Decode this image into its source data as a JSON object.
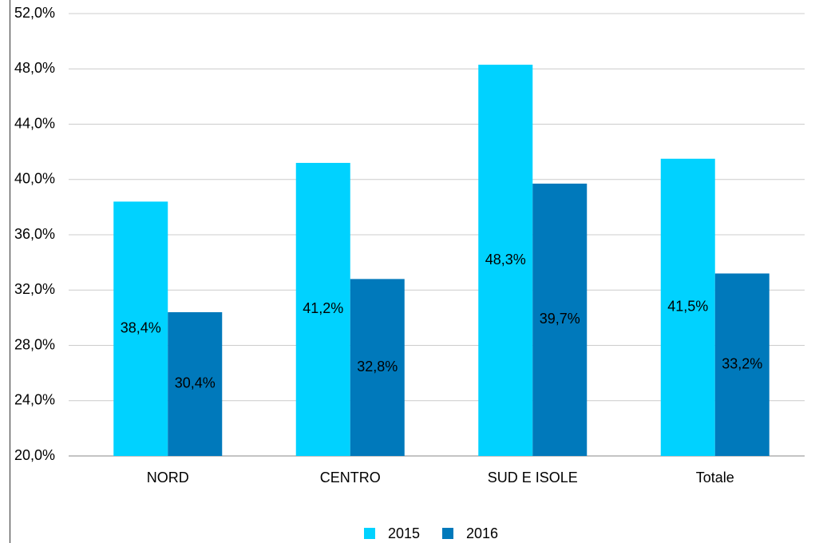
{
  "chart_data": {
    "type": "bar",
    "categories": [
      "NORD",
      "CENTRO",
      "SUD E ISOLE",
      "Totale"
    ],
    "series": [
      {
        "name": "2015",
        "color": "#00d2ff",
        "values": [
          38.4,
          41.2,
          48.3,
          41.5
        ],
        "value_labels": [
          "38,4%",
          "41,2%",
          "48,3%",
          "41,5%"
        ]
      },
      {
        "name": "2016",
        "color": "#0079bb",
        "values": [
          30.4,
          32.8,
          39.7,
          33.2
        ],
        "value_labels": [
          "30,4%",
          "32,8%",
          "39,7%",
          "33,2%"
        ]
      }
    ],
    "ylim": [
      20,
      52
    ],
    "yticks": [
      {
        "value": 20,
        "label": "20,0%"
      },
      {
        "value": 24,
        "label": "24,0%"
      },
      {
        "value": 28,
        "label": "28,0%"
      },
      {
        "value": 32,
        "label": "32,0%"
      },
      {
        "value": 36,
        "label": "36,0%"
      },
      {
        "value": 40,
        "label": "40,0%"
      },
      {
        "value": 44,
        "label": "44,0%"
      },
      {
        "value": 48,
        "label": "48,0%"
      },
      {
        "value": 52,
        "label": "52,0%"
      }
    ],
    "grid": true,
    "legend": "bottom"
  }
}
